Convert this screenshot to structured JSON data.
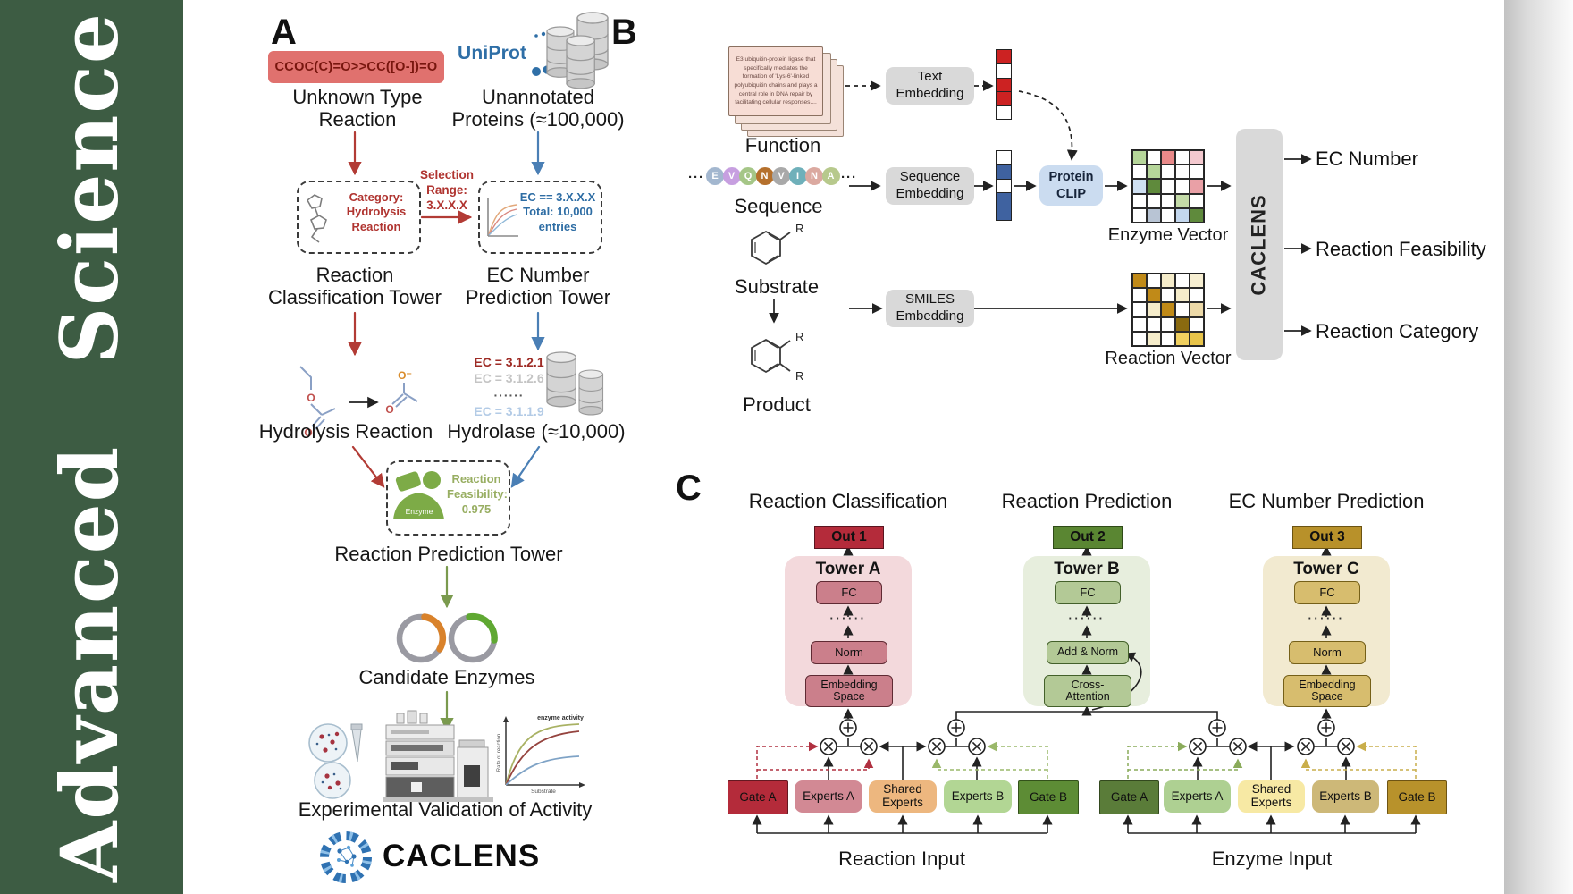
{
  "journal": {
    "name": "Advanced Science"
  },
  "colors": {
    "sidebar_green": "#3d5c43",
    "smiles_box": "#e0716e",
    "red_arrow": "#b23b35",
    "blue_arrow": "#4a7fb5",
    "green_arrow": "#7a9a4e",
    "uniprot_blue": "#2f6fa7",
    "enzyme_green": "#7dab47",
    "embedding_box": "#d9d9d9",
    "protein_clip": "#cbdcf0",
    "caclens_box": "#d9d9d9",
    "tower_a": "#f3d9dc",
    "tower_b": "#e7eedd",
    "tower_c": "#f2ead0",
    "out1": "#b42b3a",
    "out2": "#5a8632",
    "out3": "#b8912a"
  },
  "panelA": {
    "label": "A",
    "smiles": "CCOC(C)=O>>CC([O-])=O",
    "uniprot": "UniProt",
    "unknown_reaction": "Unknown Type\nReaction",
    "unannotated": "Unannotated\nProteins (≈100,000)",
    "category_box": "Category:\nHydrolysis\nReaction",
    "selection": "Selection\nRange:\n3.X.X.X",
    "ec_box": "EC == 3.X.X.X\nTotal: 10,000\nentries",
    "classification_tower": "Reaction\nClassification Tower",
    "ec_tower": "EC Number\nPrediction Tower",
    "hydrolysis_label": "Hydrolysis Reaction",
    "hydrolase_label": "Hydrolase (≈10,000)",
    "ec_list": [
      "EC = 3.1.2.1",
      "EC = 3.1.2.6",
      "······",
      "EC = 3.1.1.9"
    ],
    "feasibility": "Reaction\nFeasibility:\n0.975",
    "enzyme_icon_label": "Enzyme",
    "prediction_tower": "Reaction Prediction Tower",
    "candidate": "Candidate Enzymes",
    "validation": "Experimental Validation of Activity",
    "caclens_wordmark": "CACLENS",
    "graph": {
      "annotation": "enzyme activity",
      "ylabel": "Rate of reaction",
      "xlabel": "Substrate"
    }
  },
  "panelB": {
    "label": "B",
    "function_card": "E3 ubiquitin-protein ligase that specifically mediates the formation of 'Lys-6'-linked polyubiquitin chains and plays a central role in DNA repair by facilitating cellular responses....",
    "function_label": "Function",
    "ellipsis": "···",
    "residues": [
      {
        "letter": "E",
        "color": "#a3b7cf"
      },
      {
        "letter": "V",
        "color": "#c79fe0"
      },
      {
        "letter": "Q",
        "color": "#a5c687"
      },
      {
        "letter": "N",
        "color": "#b5702c"
      },
      {
        "letter": "V",
        "color": "#a9a9a9"
      },
      {
        "letter": "I",
        "color": "#6fb0ba"
      },
      {
        "letter": "N",
        "color": "#dba9a0"
      },
      {
        "letter": "A",
        "color": "#b7c98c"
      }
    ],
    "sequence_label": "Sequence",
    "substrate_label": "Substrate",
    "product_label": "Product",
    "r_label": "R",
    "text_embedding": "Text\nEmbedding",
    "sequence_embedding": "Sequence\nEmbedding",
    "smiles_embedding": "SMILES\nEmbedding",
    "protein_clip": "Protein\nCLIP",
    "text_vector": [
      "#cc2222",
      "#ffffff",
      "#cc2222",
      "#cc2222",
      "#ffffff"
    ],
    "seq_vector": [
      "#ffffff",
      "#3f62a0",
      "#ffffff",
      "#3f62a0",
      "#3f62a0"
    ],
    "enzyme_matrix": [
      [
        "#b6d69a",
        "#ffffff",
        "#e98a8a",
        "#ffffff",
        "#f4c9cf"
      ],
      [
        "#ffffff",
        "#b6d69a",
        "#ffffff",
        "#ffffff",
        "#ffffff"
      ],
      [
        "#cfe0f2",
        "#5f8a3c",
        "#ffffff",
        "#ffffff",
        "#e9a0a6"
      ],
      [
        "#ffffff",
        "#ffffff",
        "#ffffff",
        "#c4dba8",
        "#ffffff"
      ],
      [
        "#ffffff",
        "#b8c4d4",
        "#ffffff",
        "#c3d7ee",
        "#5f8a3c"
      ]
    ],
    "reaction_matrix": [
      [
        "#c08a18",
        "#ffffff",
        "#f5ecca",
        "#ffffff",
        "#f7efd2"
      ],
      [
        "#ffffff",
        "#c08a18",
        "#ffffff",
        "#f5ecca",
        "#ffffff"
      ],
      [
        "#ffffff",
        "#f5ecca",
        "#c08a18",
        "#ffffff",
        "#ecd9a8"
      ],
      [
        "#ffffff",
        "#ffffff",
        "#ffffff",
        "#8a6a10",
        "#ffffff"
      ],
      [
        "#ffffff",
        "#f5ecca",
        "#ffffff",
        "#f0d060",
        "#e8c44a"
      ]
    ],
    "enzyme_vector_label": "Enzyme Vector",
    "reaction_vector_label": "Reaction Vector",
    "caclens": "CACLENS",
    "outputs": [
      "EC Number",
      "Reaction Feasibility",
      "Reaction Category"
    ]
  },
  "panelC": {
    "label": "C",
    "columns": [
      "Reaction Classification",
      "Reaction Prediction",
      "EC Number Prediction"
    ],
    "towers": [
      {
        "out": "Out 1",
        "title": "Tower A",
        "blocks": [
          "FC",
          "······",
          "Norm",
          "Embedding\nSpace"
        ]
      },
      {
        "out": "Out 2",
        "title": "Tower B",
        "blocks": [
          "FC",
          "······",
          "Add & Norm",
          "Cross-\nAttention"
        ]
      },
      {
        "out": "Out 3",
        "title": "Tower C",
        "blocks": [
          "FC",
          "······",
          "Norm",
          "Embedding\nSpace"
        ]
      }
    ],
    "groups": [
      {
        "input_label": "Reaction Input",
        "boxes": [
          "Gate A",
          "Experts A",
          "Shared\nExperts",
          "Experts B",
          "Gate B"
        ]
      },
      {
        "input_label": "Enzyme Input",
        "boxes": [
          "Gate A",
          "Experts A",
          "Shared\nExperts",
          "Experts B",
          "Gate B"
        ]
      }
    ]
  }
}
